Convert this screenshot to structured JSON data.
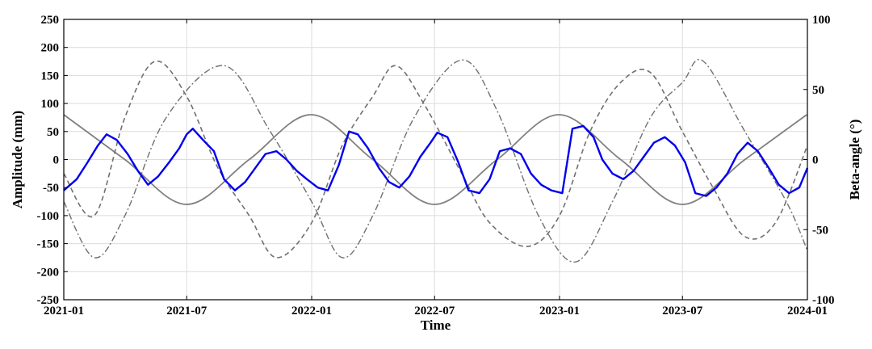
{
  "chart_data": {
    "type": "line",
    "title": "",
    "xlabel": "Time",
    "ylabel_left": "Amplitude (mm)",
    "ylabel_right": "Beta-angle (°)",
    "xlim": [
      "2021-01",
      "2024-01"
    ],
    "ylim_left": [
      -250,
      250
    ],
    "ylim_right": [
      -100,
      100
    ],
    "grid": true,
    "x_ticks": [
      "2021-01",
      "2021-07",
      "2022-01",
      "2022-07",
      "2023-01",
      "2023-07",
      "2024-01"
    ],
    "y_ticks_left": [
      250,
      200,
      150,
      100,
      50,
      0,
      -50,
      -100,
      -150,
      -200,
      -250
    ],
    "y_ticks_right": [
      100,
      50,
      0,
      -50,
      -100
    ],
    "colors": {
      "amplitude": "#0000ee",
      "solid_sine": "#808080",
      "dashed_beta": "#707070",
      "dashdot_beta": "#707070",
      "grid": "#dcdcdc"
    },
    "series": [
      {
        "style": "solid-blue",
        "axis": "left",
        "x": [
          "2021-01-01",
          "2021-01-20",
          "2021-02-05",
          "2021-02-20",
          "2021-03-05",
          "2021-03-20",
          "2021-04-05",
          "2021-04-20",
          "2021-05-05",
          "2021-05-20",
          "2021-06-05",
          "2021-06-20",
          "2021-07-01",
          "2021-07-10",
          "2021-07-25",
          "2021-08-10",
          "2021-08-25",
          "2021-09-10",
          "2021-09-25",
          "2021-10-10",
          "2021-10-25",
          "2021-11-10",
          "2021-11-25",
          "2021-12-10",
          "2021-12-25",
          "2022-01-10",
          "2022-01-25",
          "2022-02-10",
          "2022-02-25",
          "2022-03-10",
          "2022-03-25",
          "2022-04-10",
          "2022-04-25",
          "2022-05-10",
          "2022-05-25",
          "2022-06-10",
          "2022-06-25",
          "2022-07-05",
          "2022-07-20",
          "2022-08-05",
          "2022-08-20",
          "2022-09-05",
          "2022-09-20",
          "2022-10-05",
          "2022-10-20",
          "2022-11-05",
          "2022-11-20",
          "2022-12-05",
          "2022-12-20",
          "2023-01-05",
          "2023-01-20",
          "2023-02-05",
          "2023-02-20",
          "2023-03-05",
          "2023-03-20",
          "2023-04-05",
          "2023-04-20",
          "2023-05-05",
          "2023-05-20",
          "2023-06-05",
          "2023-06-20",
          "2023-07-05",
          "2023-07-20",
          "2023-08-05",
          "2023-08-20",
          "2023-09-05",
          "2023-09-20",
          "2023-10-05",
          "2023-10-20",
          "2023-11-05",
          "2023-11-20",
          "2023-12-05",
          "2023-12-20",
          "2024-01-01"
        ],
        "y": [
          -55,
          -35,
          -5,
          25,
          45,
          35,
          10,
          -20,
          -45,
          -30,
          -5,
          20,
          45,
          55,
          35,
          15,
          -35,
          -55,
          -40,
          -15,
          10,
          15,
          0,
          -20,
          -35,
          -50,
          -55,
          -10,
          50,
          45,
          20,
          -15,
          -40,
          -50,
          -30,
          5,
          30,
          48,
          40,
          -5,
          -55,
          -60,
          -35,
          15,
          20,
          10,
          -25,
          -45,
          -55,
          -60,
          55,
          60,
          40,
          0,
          -25,
          -35,
          -20,
          5,
          30,
          40,
          25,
          -5,
          -60,
          -65,
          -50,
          -25,
          10,
          30,
          15,
          -15,
          -45,
          -60,
          -50,
          -15
        ]
      },
      {
        "style": "solid-gray",
        "axis": "left",
        "x": [
          "2021-01-01",
          "2021-04-01",
          "2021-07-01",
          "2021-10-01",
          "2021-12-31",
          "2022-04-01",
          "2022-07-01",
          "2022-10-01",
          "2022-12-31",
          "2023-04-01",
          "2023-07-01",
          "2023-10-01",
          "2023-12-31"
        ],
        "y": [
          80,
          0,
          -80,
          0,
          80,
          0,
          -80,
          0,
          80,
          0,
          -80,
          0,
          80
        ]
      },
      {
        "style": "dashed-gray",
        "axis": "right",
        "x": [
          "2021-01-01",
          "2021-02-15",
          "2021-04-01",
          "2021-05-15",
          "2021-07-01",
          "2021-08-15",
          "2021-10-01",
          "2021-11-10",
          "2022-01-01",
          "2022-02-15",
          "2022-04-01",
          "2022-05-05",
          "2022-06-15",
          "2022-08-10",
          "2022-09-20",
          "2022-11-15",
          "2023-01-01",
          "2023-02-15",
          "2023-04-01",
          "2023-05-15",
          "2023-07-01",
          "2023-08-15",
          "2023-10-01",
          "2023-11-15",
          "2024-01-01"
        ],
        "y": [
          -10,
          -40,
          30,
          70,
          45,
          -5,
          -40,
          -70,
          -45,
          10,
          45,
          67,
          40,
          -10,
          -45,
          -62,
          -40,
          20,
          55,
          62,
          20,
          -20,
          -55,
          -45,
          10
        ]
      },
      {
        "style": "dashdot-gray",
        "axis": "right",
        "x": [
          "2021-01-01",
          "2021-02-15",
          "2021-04-01",
          "2021-06-01",
          "2021-08-25",
          "2021-11-01",
          "2022-01-01",
          "2022-02-15",
          "2022-04-01",
          "2022-06-01",
          "2022-08-10",
          "2022-10-01",
          "2022-12-01",
          "2023-01-25",
          "2023-03-20",
          "2023-05-15",
          "2023-07-01",
          "2023-08-01",
          "2023-10-01",
          "2023-12-01",
          "2024-01-01"
        ],
        "y": [
          -30,
          -70,
          -40,
          30,
          67,
          20,
          -30,
          -70,
          -40,
          30,
          71,
          35,
          -40,
          -73,
          -30,
          30,
          55,
          70,
          20,
          -30,
          -65
        ]
      }
    ]
  }
}
